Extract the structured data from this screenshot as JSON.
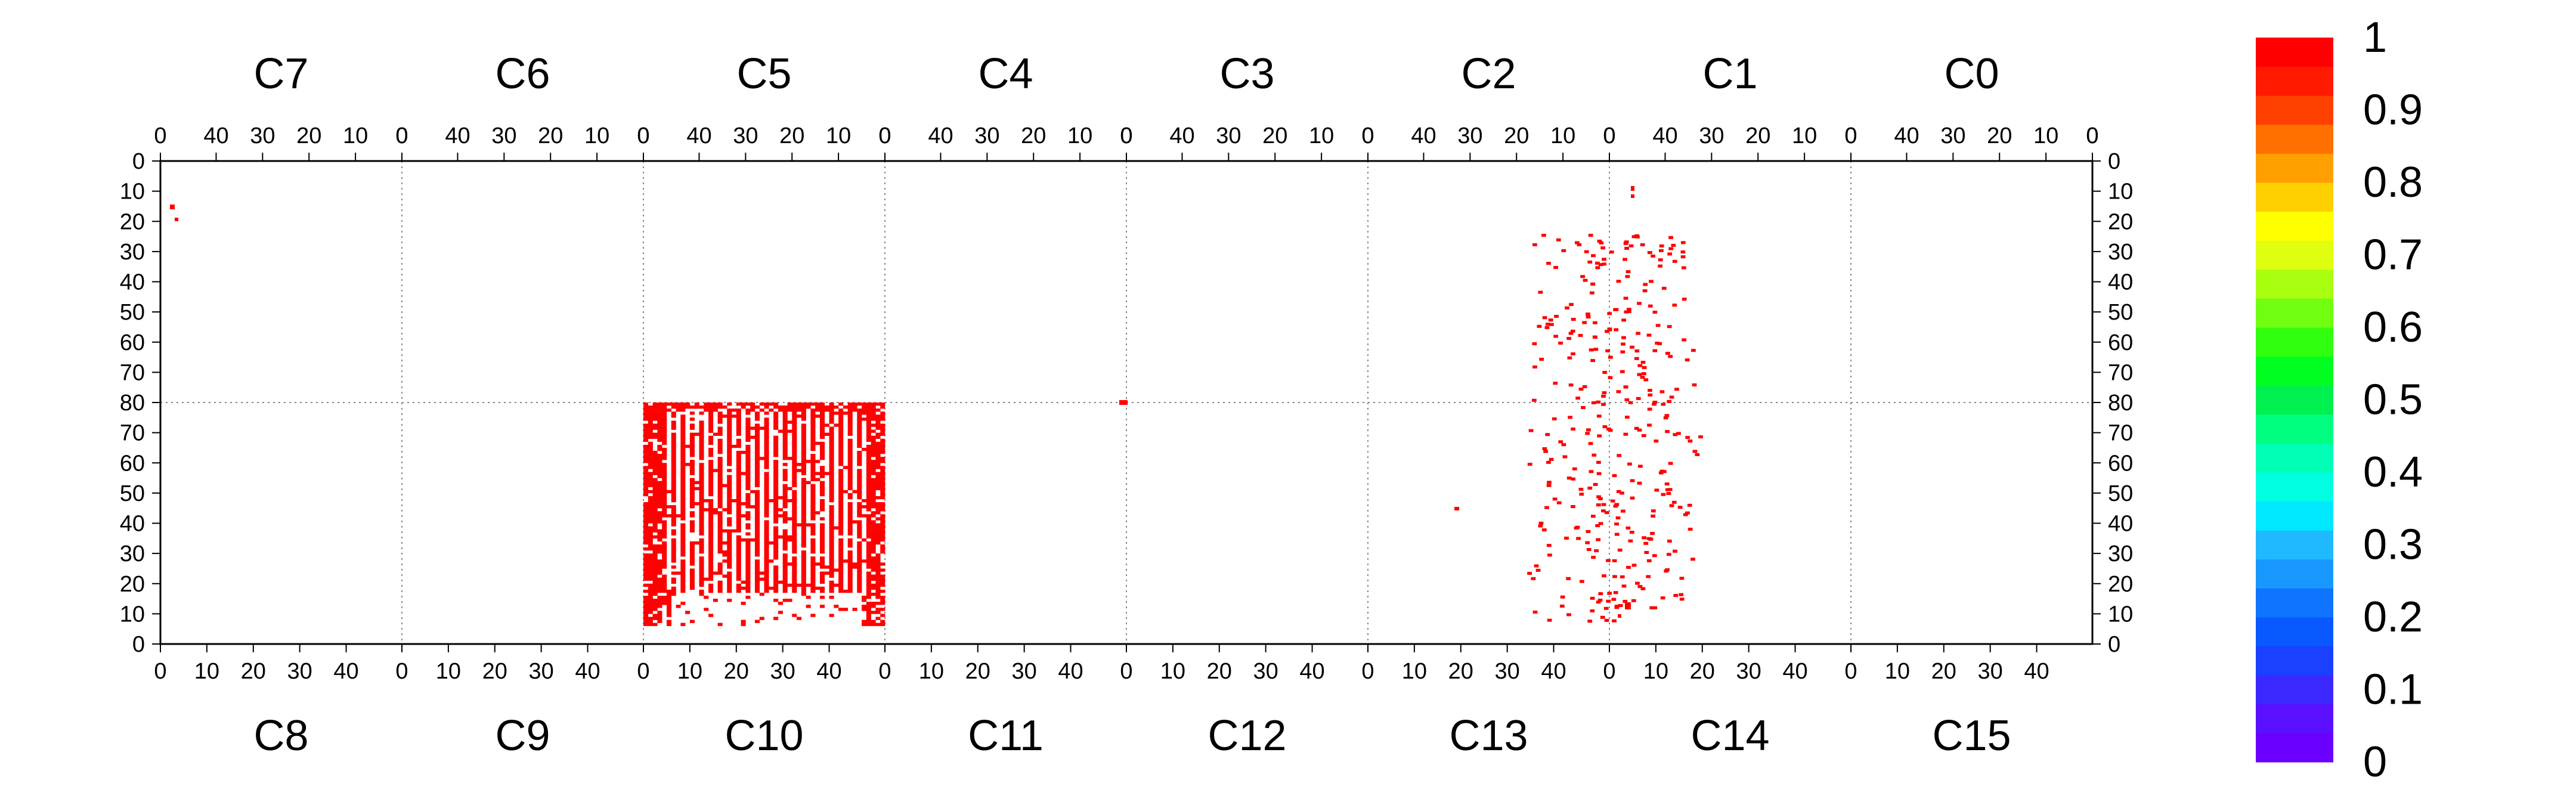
{
  "chart_data": {
    "type": "heatmap",
    "title": "",
    "top_chips": [
      "C7",
      "C6",
      "C5",
      "C4",
      "C3",
      "C2",
      "C1",
      "C0"
    ],
    "bottom_chips": [
      "C8",
      "C9",
      "C10",
      "C11",
      "C12",
      "C13",
      "C14",
      "C15"
    ],
    "x_tick_labels_top": [
      "40",
      "30",
      "20",
      "10",
      "0"
    ],
    "x_tick_labels_bottom": [
      "0",
      "10",
      "20",
      "30",
      "40"
    ],
    "y_tick_labels_top_half": [
      "0",
      "10",
      "20",
      "30",
      "40",
      "50",
      "60",
      "70",
      "80"
    ],
    "y_tick_labels_bottom_half": [
      "70",
      "60",
      "50",
      "40",
      "30",
      "20",
      "10",
      "0"
    ],
    "colorbar": {
      "labels": [
        "1",
        "0.9",
        "0.8",
        "0.7",
        "0.6",
        "0.5",
        "0.4",
        "0.3",
        "0.2",
        "0.1",
        "0"
      ],
      "colors": [
        "#6a00ff",
        "#5a10ff",
        "#3a28ff",
        "#1c40ff",
        "#0a58ff",
        "#0f74ff",
        "#1898ff",
        "#20b8ff",
        "#00e8ff",
        "#00ffe0",
        "#00ffb4",
        "#00ff80",
        "#00f050",
        "#00ff20",
        "#30ff10",
        "#70ff10",
        "#a8ff10",
        "#e0ff10",
        "#ffff00",
        "#ffd000",
        "#ffa000",
        "#ff7000",
        "#ff4000",
        "#ff1a00",
        "#ff0000"
      ]
    },
    "grid": true,
    "cells": {
      "columns_per_chip": 52,
      "rows_per_chip": 80,
      "value": 1,
      "color": "#ff0000"
    }
  }
}
